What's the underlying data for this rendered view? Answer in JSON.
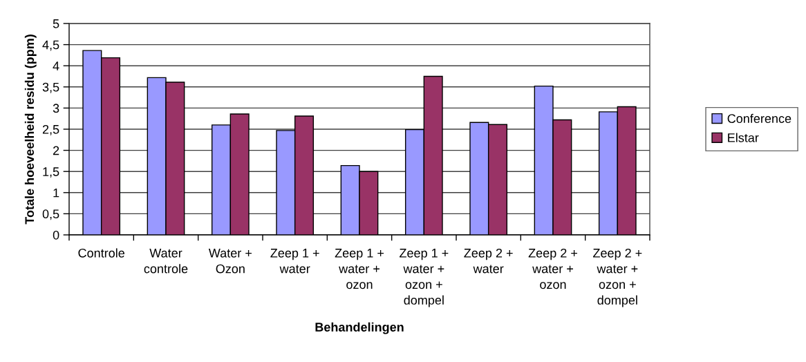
{
  "chart_data": {
    "type": "bar",
    "xlabel": "Behandelingen",
    "ylabel": "Totale hoeveelheid residu (ppm)",
    "categories": [
      "Controle",
      "Water\ncontrole",
      "Water +\nOzon",
      "Zeep 1 +\nwater",
      "Zeep 1 +\nwater +\nozon",
      "Zeep 1 +\nwater +\nozon +\ndompel",
      "Zeep 2 +\nwater",
      "Zeep 2 +\nwater +\nozon",
      "Zeep 2 +\nwater +\nozon +\ndompel"
    ],
    "series": [
      {
        "name": "Conference",
        "color": "#9999ff",
        "values": [
          4.36,
          3.72,
          2.6,
          2.47,
          1.64,
          2.49,
          2.66,
          3.52,
          2.91
        ]
      },
      {
        "name": "Elstar",
        "color": "#993366",
        "values": [
          4.19,
          3.61,
          2.86,
          2.81,
          1.5,
          3.75,
          2.61,
          2.72,
          3.03
        ]
      }
    ],
    "ylim": [
      0,
      5
    ],
    "yticks": [
      0,
      {
        "value": 0.5,
        "label": "0,5"
      },
      1,
      {
        "value": 1.5,
        "label": "1,5"
      },
      2,
      {
        "value": 2.5,
        "label": "2,5"
      },
      3,
      {
        "value": 3.5,
        "label": "3,5"
      },
      4,
      {
        "value": 4.5,
        "label": "4,5"
      },
      5
    ],
    "grid": "y",
    "legend": "right"
  }
}
